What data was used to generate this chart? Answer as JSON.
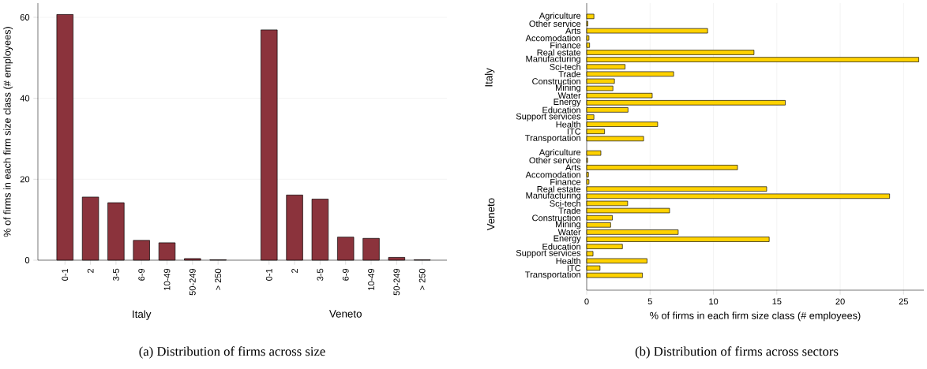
{
  "chart_data": [
    {
      "type": "bar",
      "categories": [
        "0-1",
        "2",
        "3-5",
        "6-9",
        "10-49",
        "50-249",
        "> 250",
        null,
        "0-1",
        "2",
        "3-5",
        "6-9",
        "10-49",
        "50-249",
        "> 250"
      ],
      "values": [
        60.7,
        15.6,
        14.2,
        4.9,
        4.3,
        0.4,
        0.1,
        null,
        56.9,
        16.1,
        15.1,
        5.7,
        5.4,
        0.7,
        0.1
      ],
      "color": "#8b333c",
      "ylabel": "% of firms in each firm size class (# employees)",
      "ylim": [
        0,
        63.5
      ],
      "yticks": [
        0,
        20,
        40,
        60
      ],
      "grid": "y",
      "annotations": [
        "Italy",
        "Veneto",
        "(a)  Distribution of firms across size"
      ]
    },
    {
      "type": "bar",
      "orientation": "horizontal",
      "categories": [
        "Agriculture",
        "Other service",
        "Arts",
        "Accomodation",
        "Finance",
        "Real estate",
        "Manufacturing",
        "Sci-tech",
        "Trade",
        "Construction",
        "Mining",
        "Water",
        "Energy",
        "Education",
        "Support services",
        "Health",
        "ITC",
        "Transportation",
        null,
        "Agriculture",
        "Other service",
        "Arts",
        "Accomodation",
        "Finance",
        "Real estate",
        "Manufacturing",
        "Sci-tech",
        "Trade",
        "Construction",
        "Mining",
        "Water",
        "Energy",
        "Education",
        "Support services",
        "Health",
        "ITC",
        "Transportation"
      ],
      "values": [
        0.57,
        0.09,
        9.54,
        0.18,
        0.23,
        13.2,
        26.2,
        3.03,
        6.86,
        2.19,
        2.07,
        5.17,
        15.67,
        3.26,
        0.57,
        5.6,
        1.41,
        4.49,
        null,
        1.12,
        0.07,
        11.9,
        0.14,
        0.18,
        14.2,
        23.9,
        3.23,
        6.54,
        2.03,
        1.89,
        7.22,
        14.4,
        2.82,
        0.5,
        4.76,
        1.05,
        4.4
      ],
      "color": "#ffd200",
      "xlabel": "% of firms in each firm size class (# employees)",
      "xlim": [
        0,
        26.6
      ],
      "xticks": [
        0,
        5,
        10,
        15,
        20,
        25
      ],
      "grid": "x",
      "annotations": [
        "Italy",
        "Veneto",
        "(b)  Distribution of firms across sectors"
      ]
    }
  ]
}
